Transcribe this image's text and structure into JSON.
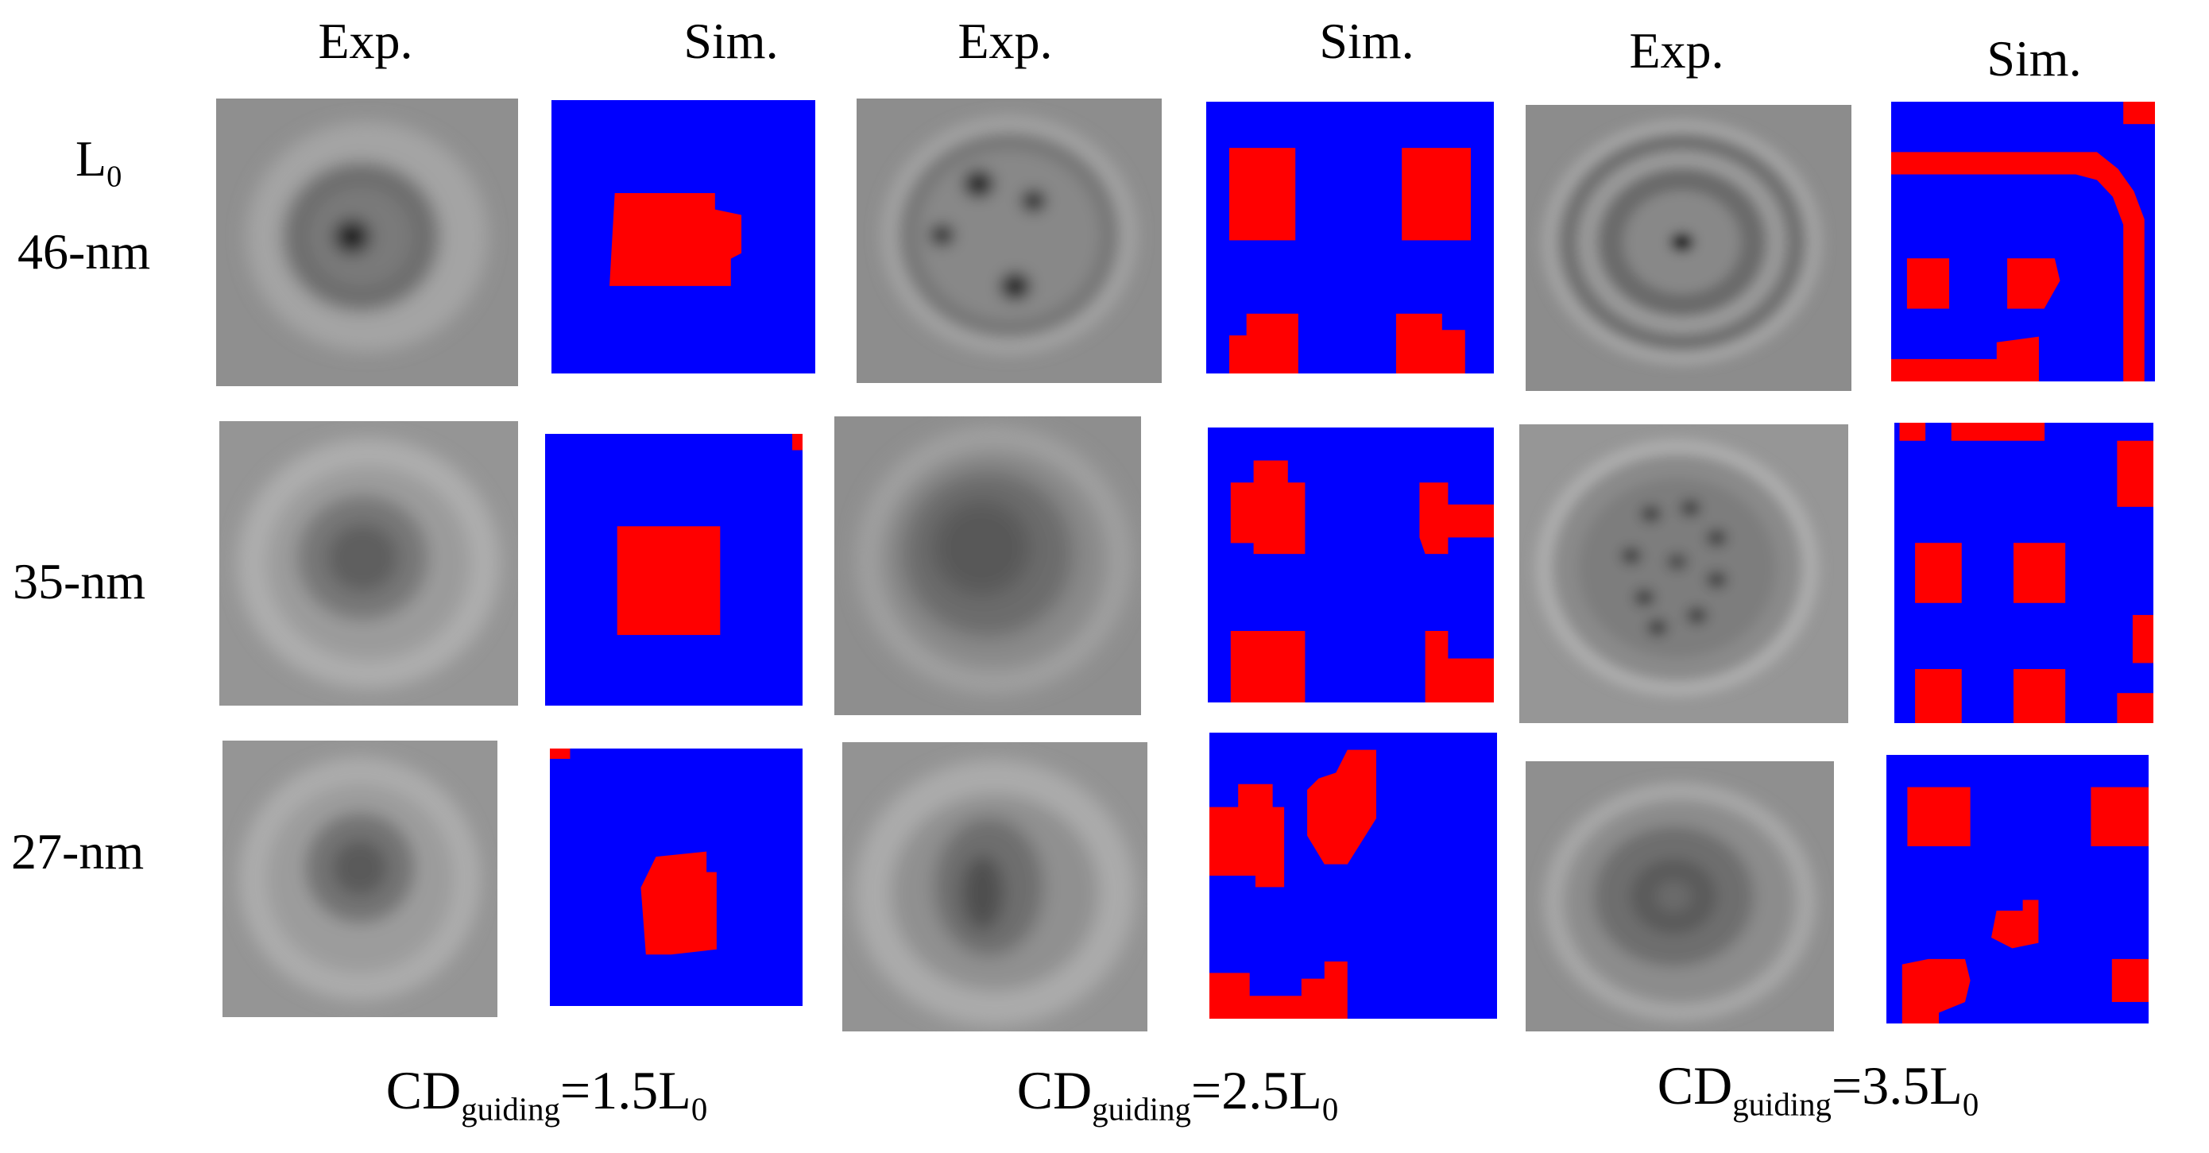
{
  "column_headers": [
    "Exp.",
    "Sim.",
    "Exp.",
    "Sim.",
    "Exp.",
    "Sim."
  ],
  "rows": [
    {
      "label_top": "L",
      "label_top_sub": "0",
      "label": "46-nm"
    },
    {
      "label": "35-nm"
    },
    {
      "label": "27-nm"
    }
  ],
  "groups": [
    {
      "prefix": "CD",
      "sub": "guiding",
      "eq": "=1.5L",
      "eq_sub": "0"
    },
    {
      "prefix": "CD",
      "sub": "guiding",
      "eq": "=2.5L",
      "eq_sub": "0"
    },
    {
      "prefix": "CD",
      "sub": "guiding",
      "eq": "=3.5L",
      "eq_sub": "0"
    }
  ],
  "colors": {
    "sim_background": "#0000ff",
    "sim_domain": "#ff0000",
    "exp_background": "#8f8f8f"
  }
}
